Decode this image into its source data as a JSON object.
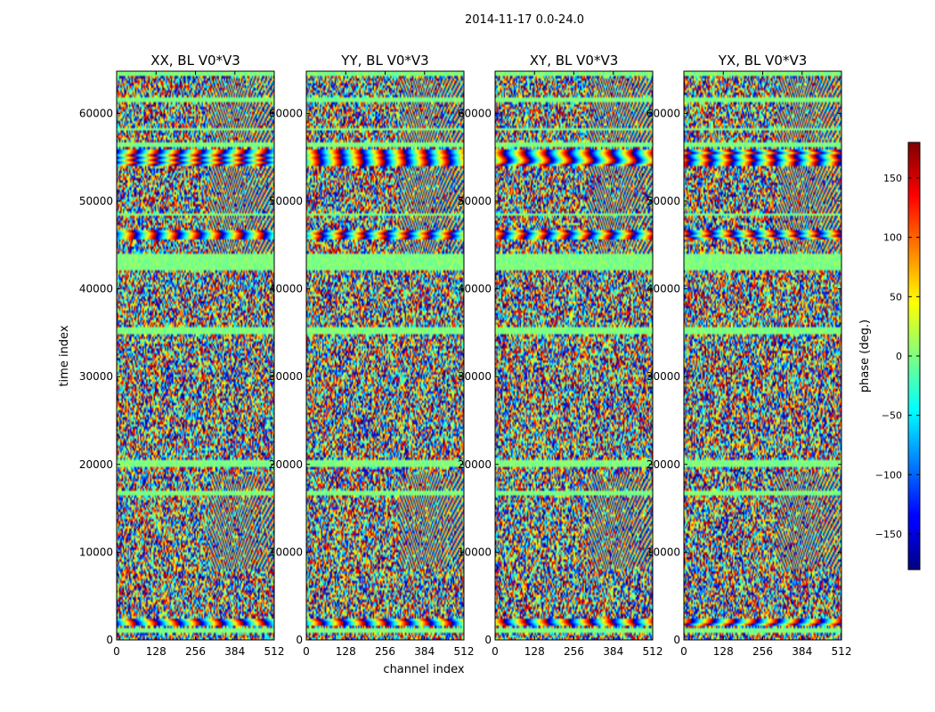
{
  "chart_data": {
    "type": "heatmap",
    "suptitle": "2014-11-17 0.0-24.0",
    "xlabel": "channel index",
    "ylabel": "time index",
    "x_range": [
      0,
      512
    ],
    "y_range": [
      0,
      64800
    ],
    "x_ticks": [
      "0",
      "128",
      "256",
      "384",
      "512"
    ],
    "x_tick_values": [
      0,
      128,
      256,
      384,
      512
    ],
    "y_ticks": [
      "0",
      "10000",
      "20000",
      "30000",
      "40000",
      "50000",
      "60000"
    ],
    "y_tick_values": [
      0,
      10000,
      20000,
      30000,
      40000,
      50000,
      60000
    ],
    "panels": [
      {
        "title": "XX, BL V0*V3",
        "polarization": "XX"
      },
      {
        "title": "YY, BL V0*V3",
        "polarization": "YY"
      },
      {
        "title": "XY, BL V0*V3",
        "polarization": "XY"
      },
      {
        "title": "YX, BL V0*V3",
        "polarization": "YX"
      }
    ],
    "colorbar": {
      "label": "phase (deg.)",
      "range": [
        -180,
        180
      ],
      "colormap": "jet",
      "ticks": [
        "−150",
        "−100",
        "−50",
        "0",
        "50",
        "100",
        "150"
      ],
      "tick_values": [
        -150,
        -100,
        -50,
        0,
        50,
        100,
        150
      ]
    },
    "bands": [
      {
        "time_start": 64200,
        "time_end": 64800,
        "kind": "flag"
      },
      {
        "time_start": 61400,
        "time_end": 61900,
        "kind": "flag"
      },
      {
        "time_start": 58000,
        "time_end": 58300,
        "kind": "flag"
      },
      {
        "time_start": 56200,
        "time_end": 56700,
        "kind": "flag"
      },
      {
        "time_start": 54000,
        "time_end": 55800,
        "kind": "fringe"
      },
      {
        "time_start": 48200,
        "time_end": 48600,
        "kind": "flag"
      },
      {
        "time_start": 45600,
        "time_end": 46800,
        "kind": "fringe"
      },
      {
        "time_start": 42200,
        "time_end": 44000,
        "kind": "flag"
      },
      {
        "time_start": 34700,
        "time_end": 35700,
        "kind": "flag"
      },
      {
        "time_start": 19800,
        "time_end": 20500,
        "kind": "flag"
      },
      {
        "time_start": 16400,
        "time_end": 16900,
        "kind": "flag"
      },
      {
        "time_start": 1700,
        "time_end": 2400,
        "kind": "fringe"
      },
      {
        "time_start": 900,
        "time_end": 1300,
        "kind": "flag"
      }
    ],
    "colors": {
      "background": "#ffffff",
      "flag_band": "#7fff7f"
    }
  }
}
